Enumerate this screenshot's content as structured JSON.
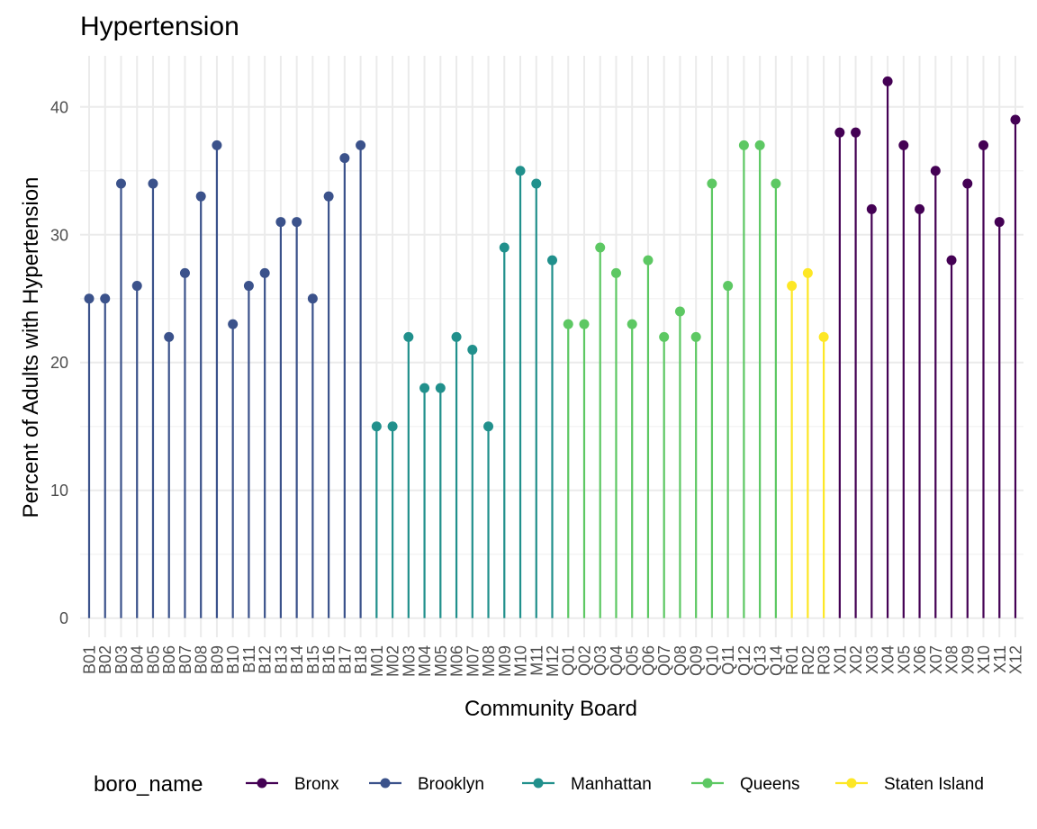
{
  "chart_data": {
    "type": "lollipop",
    "title": "Hypertension",
    "xlabel": "Community Board",
    "ylabel": "Percent of Adults with Hypertension",
    "ylim": [
      -1.5,
      44
    ],
    "yticks": [
      0,
      10,
      20,
      30,
      40
    ],
    "grid": true,
    "legend": {
      "title": "boro_name",
      "position": "bottom",
      "entries": [
        {
          "name": "Bronx",
          "color": "#440154"
        },
        {
          "name": "Brooklyn",
          "color": "#3B528B"
        },
        {
          "name": "Manhattan",
          "color": "#21908C"
        },
        {
          "name": "Queens",
          "color": "#5DC863"
        },
        {
          "name": "Staten Island",
          "color": "#FDE725"
        }
      ]
    },
    "points": [
      {
        "x": "B01",
        "y": 25,
        "boro": "Brooklyn"
      },
      {
        "x": "B02",
        "y": 25,
        "boro": "Brooklyn"
      },
      {
        "x": "B03",
        "y": 34,
        "boro": "Brooklyn"
      },
      {
        "x": "B04",
        "y": 26,
        "boro": "Brooklyn"
      },
      {
        "x": "B05",
        "y": 34,
        "boro": "Brooklyn"
      },
      {
        "x": "B06",
        "y": 22,
        "boro": "Brooklyn"
      },
      {
        "x": "B07",
        "y": 27,
        "boro": "Brooklyn"
      },
      {
        "x": "B08",
        "y": 33,
        "boro": "Brooklyn"
      },
      {
        "x": "B09",
        "y": 37,
        "boro": "Brooklyn"
      },
      {
        "x": "B10",
        "y": 23,
        "boro": "Brooklyn"
      },
      {
        "x": "B11",
        "y": 26,
        "boro": "Brooklyn"
      },
      {
        "x": "B12",
        "y": 27,
        "boro": "Brooklyn"
      },
      {
        "x": "B13",
        "y": 31,
        "boro": "Brooklyn"
      },
      {
        "x": "B14",
        "y": 31,
        "boro": "Brooklyn"
      },
      {
        "x": "B15",
        "y": 25,
        "boro": "Brooklyn"
      },
      {
        "x": "B16",
        "y": 33,
        "boro": "Brooklyn"
      },
      {
        "x": "B17",
        "y": 36,
        "boro": "Brooklyn"
      },
      {
        "x": "B18",
        "y": 37,
        "boro": "Brooklyn"
      },
      {
        "x": "M01",
        "y": 15,
        "boro": "Manhattan"
      },
      {
        "x": "M02",
        "y": 15,
        "boro": "Manhattan"
      },
      {
        "x": "M03",
        "y": 22,
        "boro": "Manhattan"
      },
      {
        "x": "M04",
        "y": 18,
        "boro": "Manhattan"
      },
      {
        "x": "M05",
        "y": 18,
        "boro": "Manhattan"
      },
      {
        "x": "M06",
        "y": 22,
        "boro": "Manhattan"
      },
      {
        "x": "M07",
        "y": 21,
        "boro": "Manhattan"
      },
      {
        "x": "M08",
        "y": 15,
        "boro": "Manhattan"
      },
      {
        "x": "M09",
        "y": 29,
        "boro": "Manhattan"
      },
      {
        "x": "M10",
        "y": 35,
        "boro": "Manhattan"
      },
      {
        "x": "M11",
        "y": 34,
        "boro": "Manhattan"
      },
      {
        "x": "M12",
        "y": 28,
        "boro": "Manhattan"
      },
      {
        "x": "Q01",
        "y": 23,
        "boro": "Queens"
      },
      {
        "x": "Q02",
        "y": 23,
        "boro": "Queens"
      },
      {
        "x": "Q03",
        "y": 29,
        "boro": "Queens"
      },
      {
        "x": "Q04",
        "y": 27,
        "boro": "Queens"
      },
      {
        "x": "Q05",
        "y": 23,
        "boro": "Queens"
      },
      {
        "x": "Q06",
        "y": 28,
        "boro": "Queens"
      },
      {
        "x": "Q07",
        "y": 22,
        "boro": "Queens"
      },
      {
        "x": "Q08",
        "y": 24,
        "boro": "Queens"
      },
      {
        "x": "Q09",
        "y": 22,
        "boro": "Queens"
      },
      {
        "x": "Q10",
        "y": 34,
        "boro": "Queens"
      },
      {
        "x": "Q11",
        "y": 26,
        "boro": "Queens"
      },
      {
        "x": "Q12",
        "y": 37,
        "boro": "Queens"
      },
      {
        "x": "Q13",
        "y": 37,
        "boro": "Queens"
      },
      {
        "x": "Q14",
        "y": 34,
        "boro": "Queens"
      },
      {
        "x": "R01",
        "y": 26,
        "boro": "Staten Island"
      },
      {
        "x": "R02",
        "y": 27,
        "boro": "Staten Island"
      },
      {
        "x": "R03",
        "y": 22,
        "boro": "Staten Island"
      },
      {
        "x": "X01",
        "y": 38,
        "boro": "Bronx"
      },
      {
        "x": "X02",
        "y": 38,
        "boro": "Bronx"
      },
      {
        "x": "X03",
        "y": 32,
        "boro": "Bronx"
      },
      {
        "x": "X04",
        "y": 42,
        "boro": "Bronx"
      },
      {
        "x": "X05",
        "y": 37,
        "boro": "Bronx"
      },
      {
        "x": "X06",
        "y": 32,
        "boro": "Bronx"
      },
      {
        "x": "X07",
        "y": 35,
        "boro": "Bronx"
      },
      {
        "x": "X08",
        "y": 28,
        "boro": "Bronx"
      },
      {
        "x": "X09",
        "y": 34,
        "boro": "Bronx"
      },
      {
        "x": "X10",
        "y": 37,
        "boro": "Bronx"
      },
      {
        "x": "X11",
        "y": 31,
        "boro": "Bronx"
      },
      {
        "x": "X12",
        "y": 39,
        "boro": "Bronx"
      }
    ]
  }
}
